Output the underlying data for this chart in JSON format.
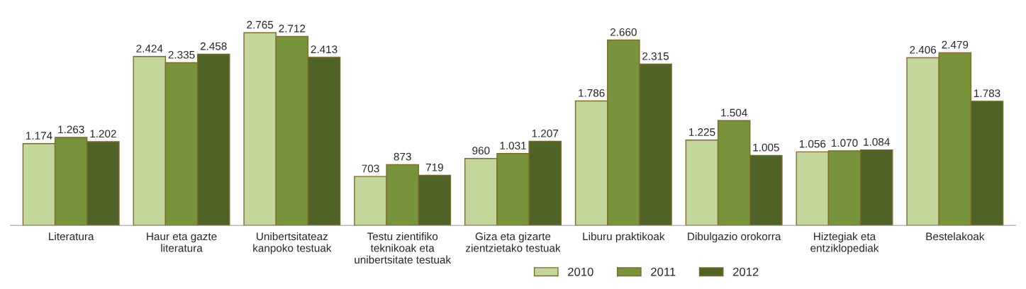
{
  "chart_data": {
    "type": "bar",
    "categories": [
      "Literatura",
      "Haur eta gazte literatura",
      "Unibertsitateaz kanpoko testuak",
      "Testu zientifiko teknikoak eta unibertsitate testuak",
      "Giza eta gizarte zientzietako testuak",
      "Liburu praktikoak",
      "Dibulgazio orokorra",
      "Hiztegiak eta entziklopediak",
      "Bestelakoak"
    ],
    "series": [
      {
        "name": "2010",
        "color": "#c3d69b",
        "values": [
          1174,
          2424,
          2765,
          703,
          960,
          1786,
          1225,
          1056,
          2406
        ],
        "value_labels": [
          "1.174",
          "2.424",
          "2.765",
          "703",
          "960",
          "1.786",
          "1.225",
          "1.056",
          "2.406"
        ]
      },
      {
        "name": "2011",
        "color": "#77933c",
        "values": [
          1263,
          2335,
          2712,
          873,
          1031,
          2660,
          1504,
          1070,
          2479
        ],
        "value_labels": [
          "1.263",
          "2.335",
          "2.712",
          "873",
          "1.031",
          "2.660",
          "1.504",
          "1.070",
          "2.479"
        ]
      },
      {
        "name": "2012",
        "color": "#4f6228",
        "values": [
          1202,
          2458,
          2413,
          719,
          1207,
          2315,
          1005,
          1084,
          1783
        ],
        "value_labels": [
          "1.202",
          "2.458",
          "2.413",
          "719",
          "1.207",
          "2.315",
          "1.005",
          "1.084",
          "1.783"
        ]
      }
    ],
    "legend": "bottom right",
    "grid": false
  }
}
